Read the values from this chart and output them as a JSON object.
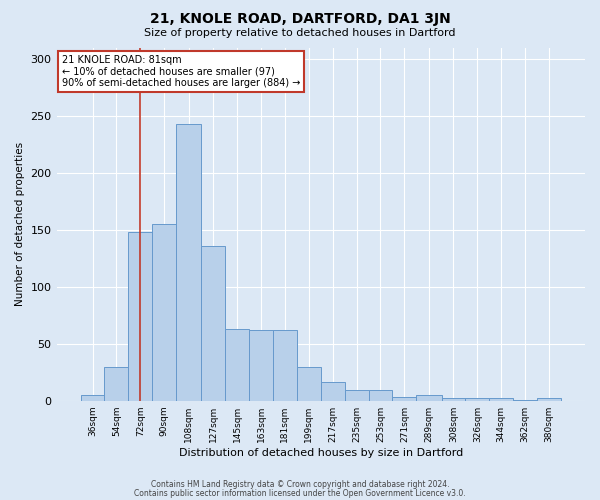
{
  "title": "21, KNOLE ROAD, DARTFORD, DA1 3JN",
  "subtitle": "Size of property relative to detached houses in Dartford",
  "xlabel": "Distribution of detached houses by size in Dartford",
  "ylabel": "Number of detached properties",
  "bar_color": "#b8d0ea",
  "bar_edge_color": "#6699cc",
  "background_color": "#dce8f5",
  "grid_color": "#ffffff",
  "vline_color": "#c0392b",
  "vline_x": 81,
  "annotation_text": "21 KNOLE ROAD: 81sqm\n← 10% of detached houses are smaller (97)\n90% of semi-detached houses are larger (884) →",
  "annotation_box_color": "#ffffff",
  "annotation_border_color": "#c0392b",
  "footer1": "Contains HM Land Registry data © Crown copyright and database right 2024.",
  "footer2": "Contains public sector information licensed under the Open Government Licence v3.0.",
  "bin_edges": [
    36,
    54,
    72,
    90,
    108,
    127,
    145,
    163,
    181,
    199,
    217,
    235,
    253,
    271,
    289,
    308,
    326,
    344,
    362,
    380,
    398
  ],
  "bin_heights": [
    5,
    30,
    148,
    155,
    243,
    136,
    63,
    62,
    62,
    30,
    16,
    9,
    9,
    3,
    5,
    2,
    2,
    2,
    1,
    2
  ],
  "ylim": [
    0,
    310
  ],
  "yticks": [
    0,
    50,
    100,
    150,
    200,
    250,
    300
  ]
}
